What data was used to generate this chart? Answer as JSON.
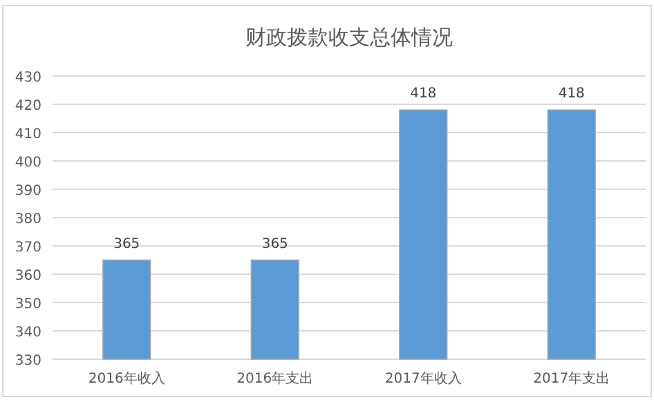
{
  "chart_data": {
    "type": "bar",
    "title": "财政拨款收支总体情况",
    "categories": [
      "2016年收入",
      "2016年支出",
      "2017年收入",
      "2017年支出"
    ],
    "values": [
      365,
      365,
      418,
      418
    ],
    "color": "#5b9bd5",
    "ylim": [
      330,
      430
    ],
    "yticks": [
      330,
      340,
      350,
      360,
      370,
      380,
      390,
      400,
      410,
      420,
      430
    ],
    "grid": "y",
    "data_labels": true
  }
}
